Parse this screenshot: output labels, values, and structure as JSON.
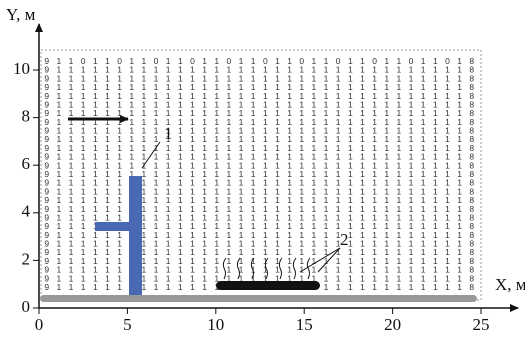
{
  "chart_data": {
    "type": "field",
    "x_label": "X, м",
    "y_label": "Y, м",
    "xlim": [
      0,
      26.6
    ],
    "ylim": [
      0,
      11.4
    ],
    "xticks": [
      0,
      5,
      10,
      15,
      20,
      25
    ],
    "yticks": [
      0,
      2,
      4,
      6,
      8,
      10
    ],
    "annotations": [
      "1",
      "2"
    ],
    "grid_columns": [
      "999999999999999999999999999",
      "111111111111111111111111111",
      "111111111111111111111111111",
      "011111111111111111111111111",
      "111111111111111111111111111",
      "111111111111111111111111111",
      "011111111111111111111111111",
      "111111111111111111111111111",
      "111111111111111111111111111",
      "011111111111111111111111111",
      "111111111111111111111111111",
      "111111111111111111111111111",
      "011111111111111111111111111",
      "111111111111111111111111111",
      "111111111111111111111111111",
      "011111111111111111111111111",
      "111111111111111111111111111",
      "111111111111111111111111111",
      "011111111111111111111111111",
      "111111111111111111111111111",
      "111111111111111111111111111",
      "011111111111111111111111111",
      "111111111111111111111111111",
      "111111111111111111111111111",
      "011111111111111111111111111",
      "111111111111111111111111111",
      "111111111111111111111111111",
      "011111111111111111111111111",
      "111111111111111111111111111",
      "111111111111111111111111111",
      "011111111111111111111111111",
      "111111111111111111111111111",
      "111111111111111111111111111",
      "011111111111111111111111111",
      "111111111111111111111111111",
      "888888888888888888888888888"
    ]
  }
}
